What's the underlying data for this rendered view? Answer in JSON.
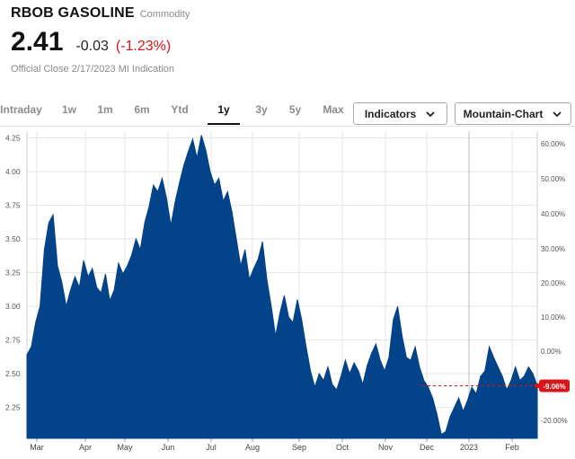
{
  "header": {
    "title": "RBOB GASOLINE",
    "subtitle": "Commodity",
    "price": "2.41",
    "change": "-0.03",
    "change_pct": "(-1.23%)",
    "close_info": "Official Close 2/17/2023  MI Indication"
  },
  "tabs": [
    {
      "label": "Intraday",
      "active": false
    },
    {
      "label": "1w",
      "active": false
    },
    {
      "label": "1m",
      "active": false
    },
    {
      "label": "6m",
      "active": false
    },
    {
      "label": "Ytd",
      "active": false
    },
    {
      "label": "1y",
      "active": true
    },
    {
      "label": "3y",
      "active": false
    },
    {
      "label": "5y",
      "active": false
    },
    {
      "label": "Max",
      "active": false
    }
  ],
  "controls": {
    "indicators_label": "Indicators",
    "chart_type_label": "Mountain-Chart"
  },
  "colors": {
    "area_fill": "#034389",
    "negative": "#d7161b",
    "grid": "#e6e6e6"
  },
  "chart_data": {
    "type": "area",
    "left_ylim": [
      2.02,
      4.3
    ],
    "left_ticks": [
      "4.25",
      "4.00",
      "3.75",
      "3.50",
      "3.25",
      "3.00",
      "2.75",
      "2.50",
      "2.25"
    ],
    "right_ticks": [
      "60.00%",
      "50.00%",
      "40.00%",
      "30.00%",
      "20.00%",
      "10.00%",
      "0.00%",
      "-20.00%"
    ],
    "right_marker_label": "-9.06%",
    "reference_level": 2.41,
    "x_labels": [
      "Mar",
      "Apr",
      "May",
      "Jun",
      "Jul",
      "Aug",
      "Sep",
      "Oct",
      "Nov",
      "Dec",
      "2023",
      "Feb"
    ],
    "grid": true,
    "series": [
      {
        "values": [
          2.64,
          2.7,
          2.88,
          3.0,
          3.42,
          3.62,
          3.68,
          3.3,
          3.18,
          3.0,
          3.12,
          3.22,
          3.14,
          3.34,
          3.22,
          3.28,
          3.14,
          3.1,
          3.24,
          3.04,
          3.12,
          3.32,
          3.24,
          3.3,
          3.38,
          3.5,
          3.42,
          3.62,
          3.74,
          3.9,
          3.85,
          3.95,
          3.8,
          3.6,
          3.78,
          3.92,
          4.05,
          4.15,
          4.24,
          4.1,
          4.27,
          4.16,
          4.0,
          3.9,
          3.95,
          3.78,
          3.85,
          3.7,
          3.5,
          3.3,
          3.42,
          3.2,
          3.28,
          3.35,
          3.48,
          3.2,
          3.0,
          2.78,
          2.95,
          3.08,
          2.92,
          2.88,
          3.05,
          2.9,
          2.7,
          2.52,
          2.4,
          2.5,
          2.45,
          2.55,
          2.42,
          2.38,
          2.48,
          2.6,
          2.5,
          2.58,
          2.52,
          2.42,
          2.56,
          2.65,
          2.72,
          2.6,
          2.52,
          2.62,
          2.9,
          3.0,
          2.78,
          2.62,
          2.6,
          2.7,
          2.55,
          2.45,
          2.4,
          2.32,
          2.2,
          2.05,
          2.07,
          2.18,
          2.25,
          2.32,
          2.22,
          2.3,
          2.4,
          2.35,
          2.48,
          2.52,
          2.7,
          2.62,
          2.55,
          2.48,
          2.38,
          2.45,
          2.55,
          2.45,
          2.48,
          2.55,
          2.5,
          2.41
        ]
      }
    ]
  }
}
